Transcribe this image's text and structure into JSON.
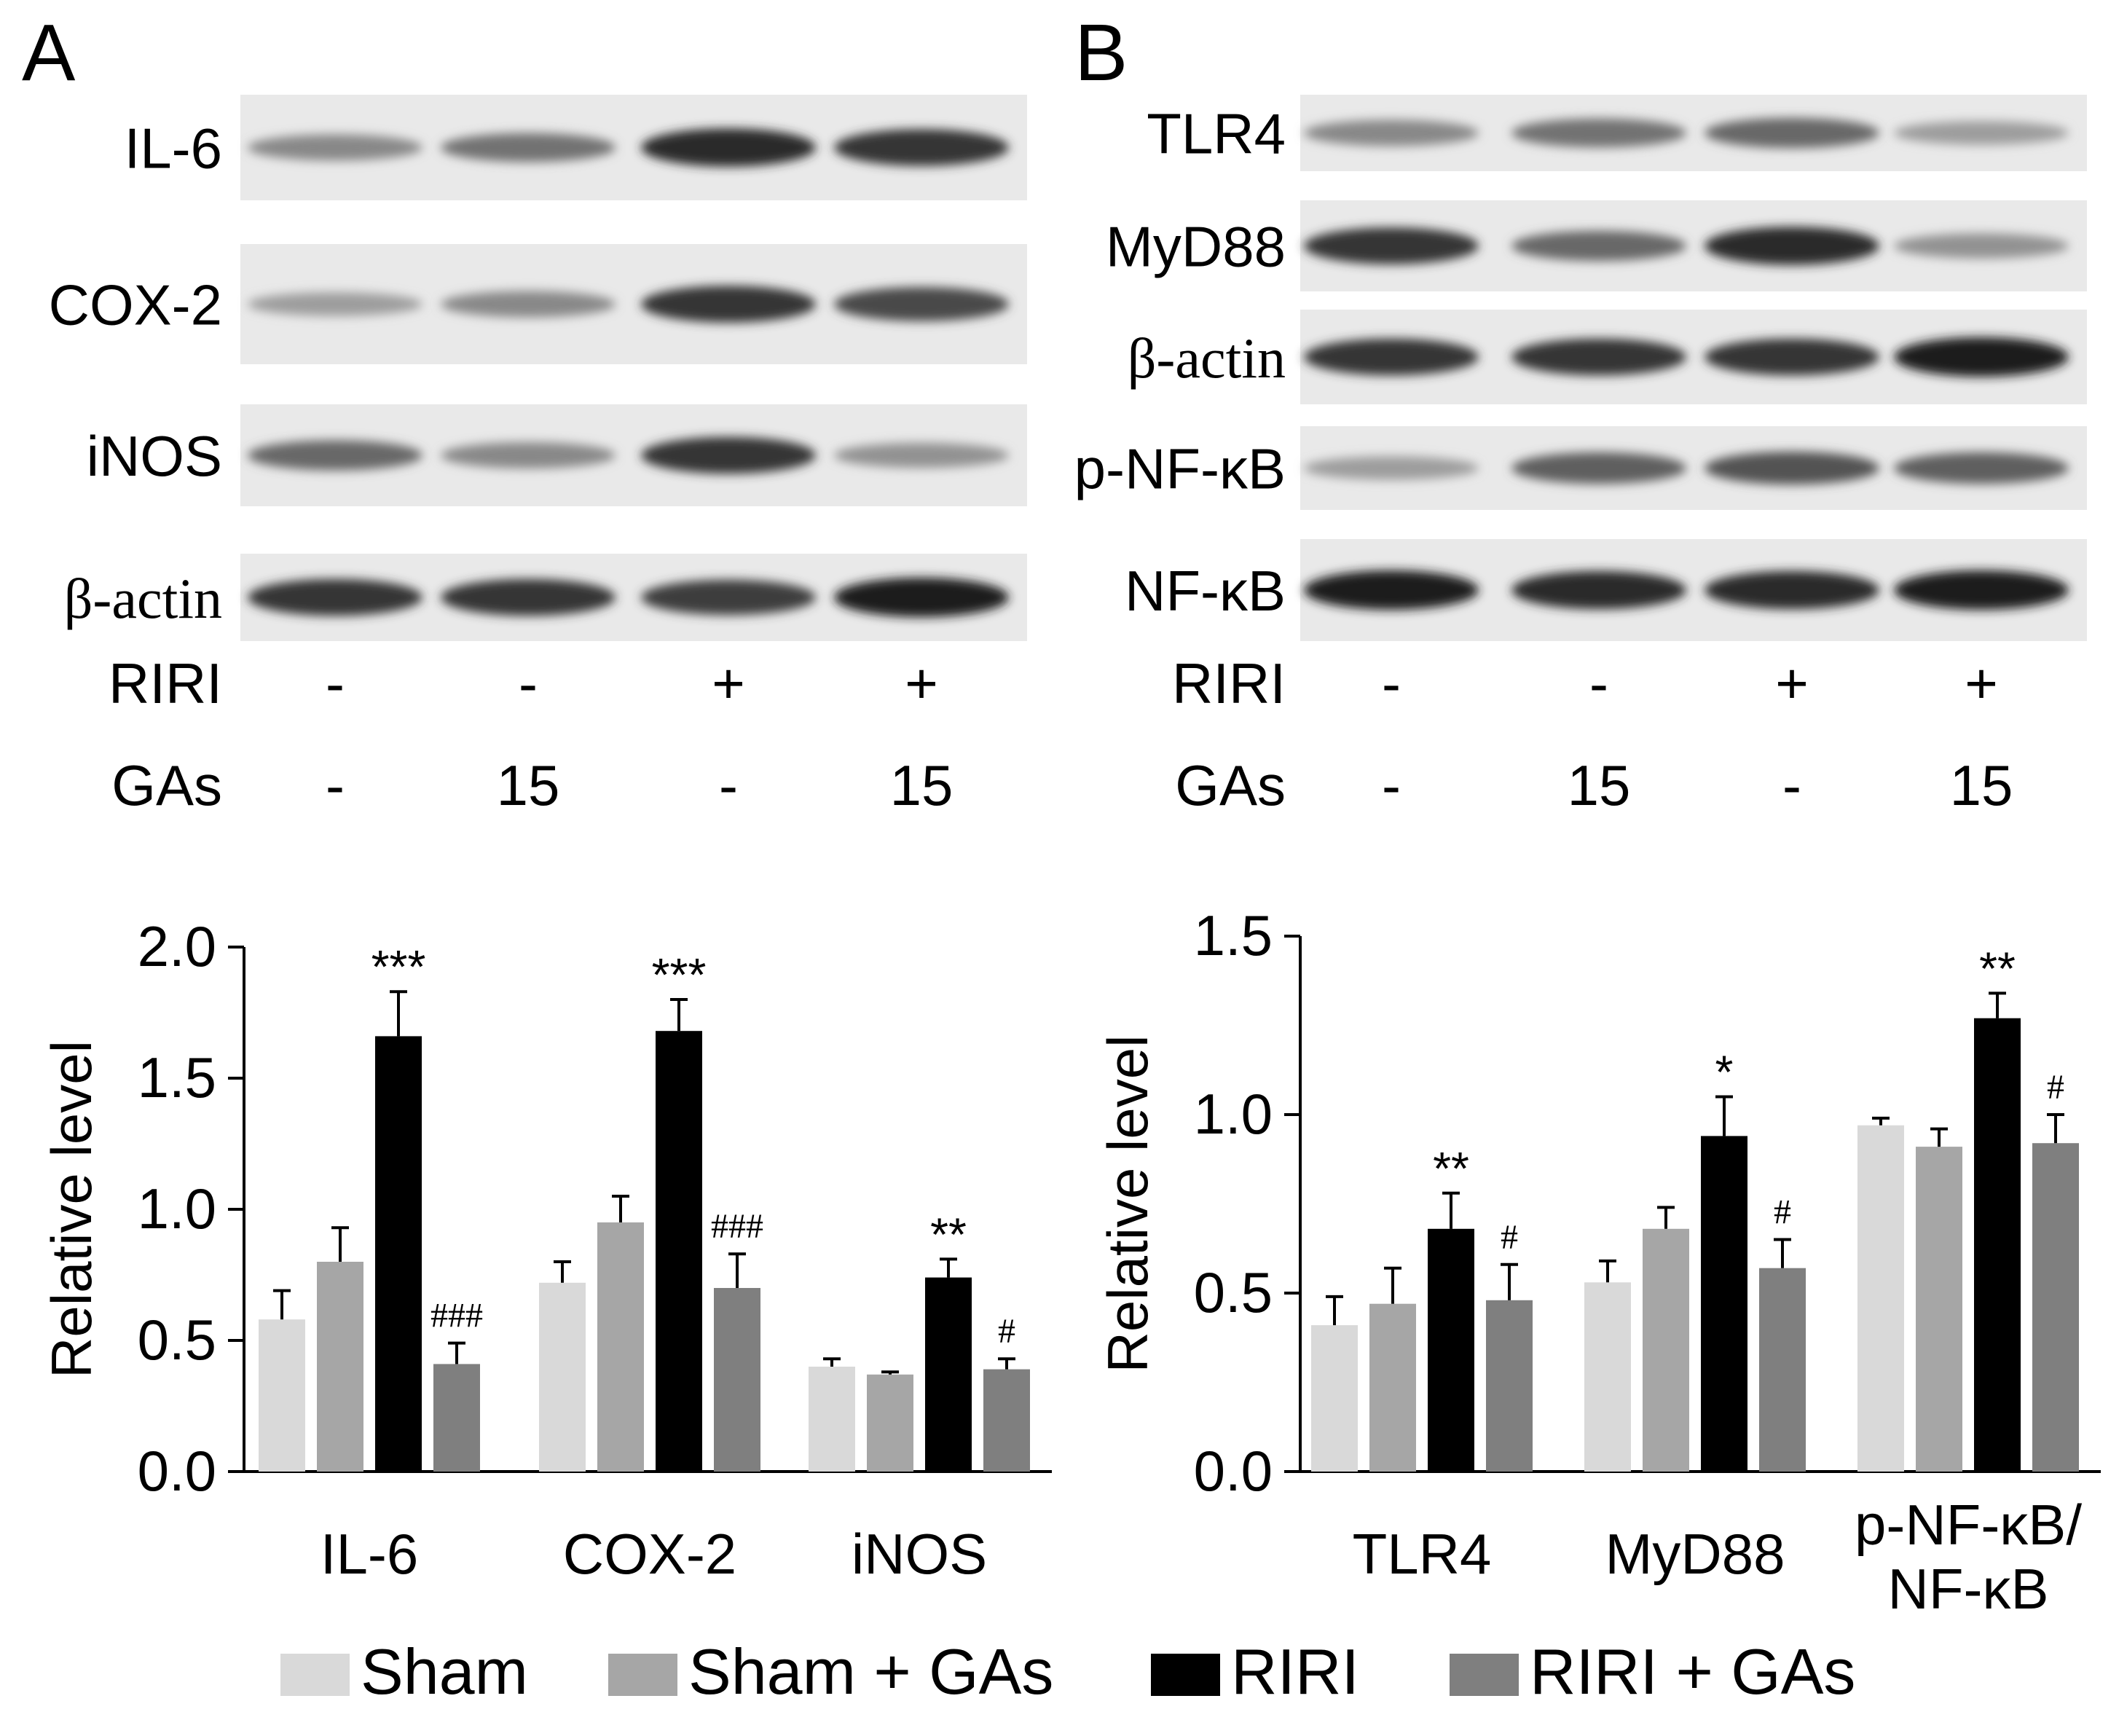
{
  "panels": [
    {
      "letter": "A",
      "blots": [
        {
          "label": "IL-6",
          "intensities": [
            0.45,
            0.55,
            0.9,
            0.85
          ]
        },
        {
          "label": "COX-2",
          "intensities": [
            0.35,
            0.45,
            0.85,
            0.75
          ]
        },
        {
          "label": "iNOS",
          "intensities": [
            0.6,
            0.45,
            0.85,
            0.4
          ]
        },
        {
          "label": "β-actin",
          "intensities": [
            0.85,
            0.85,
            0.8,
            0.95
          ]
        }
      ],
      "conditions": [
        {
          "label": "RIRI",
          "values": [
            "-",
            "-",
            "+",
            "+"
          ]
        },
        {
          "label": "GAs",
          "values": [
            "-",
            "15",
            "-",
            "15"
          ]
        }
      ]
    },
    {
      "letter": "B",
      "blots": [
        {
          "label": "TLR4",
          "intensities": [
            0.45,
            0.55,
            0.6,
            0.35
          ]
        },
        {
          "label": "MyD88",
          "intensities": [
            0.85,
            0.6,
            0.9,
            0.4
          ]
        },
        {
          "label": "β-actin",
          "intensities": [
            0.85,
            0.85,
            0.85,
            0.95
          ]
        },
        {
          "label": "p-NF-κB",
          "intensities": [
            0.35,
            0.65,
            0.7,
            0.65
          ]
        },
        {
          "label": "NF-κB",
          "intensities": [
            0.95,
            0.9,
            0.9,
            0.95
          ]
        }
      ],
      "conditions": [
        {
          "label": "RIRI",
          "values": [
            "-",
            "-",
            "+",
            "+"
          ]
        },
        {
          "label": "GAs",
          "values": [
            "-",
            "15",
            "-",
            "15"
          ]
        }
      ]
    }
  ],
  "chart_data": [
    {
      "type": "bar",
      "ylabel": "Relative level",
      "ylim": [
        0,
        2.0
      ],
      "yticks": [
        "0.0",
        "0.5",
        "1.0",
        "1.5",
        "2.0"
      ],
      "categories": [
        "IL-6",
        "COX-2",
        "iNOS"
      ],
      "series": [
        {
          "name": "Sham",
          "values": [
            0.58,
            0.72,
            0.4
          ],
          "errors": [
            0.11,
            0.08,
            0.03
          ]
        },
        {
          "name": "Sham + GAs",
          "values": [
            0.8,
            0.95,
            0.37
          ],
          "errors": [
            0.13,
            0.1,
            0.01
          ]
        },
        {
          "name": "RIRI",
          "values": [
            1.66,
            1.68,
            0.74
          ],
          "errors": [
            0.17,
            0.12,
            0.07
          ]
        },
        {
          "name": "RIRI + GAs",
          "values": [
            0.41,
            0.7,
            0.39
          ],
          "errors": [
            0.08,
            0.13,
            0.04
          ]
        }
      ],
      "annotations": [
        {
          "category": 0,
          "series": 2,
          "text": "***"
        },
        {
          "category": 0,
          "series": 3,
          "text": "###"
        },
        {
          "category": 1,
          "series": 2,
          "text": "***"
        },
        {
          "category": 1,
          "series": 3,
          "text": "###"
        },
        {
          "category": 2,
          "series": 2,
          "text": "**"
        },
        {
          "category": 2,
          "series": 3,
          "text": "#"
        }
      ]
    },
    {
      "type": "bar",
      "ylabel": "Relative level",
      "ylim": [
        0,
        1.5
      ],
      "yticks": [
        "0.0",
        "0.5",
        "1.0",
        "1.5"
      ],
      "categories": [
        "TLR4",
        "MyD88",
        "p-NF-κB/\nNF-κB"
      ],
      "series": [
        {
          "name": "Sham",
          "values": [
            0.41,
            0.53,
            0.97
          ],
          "errors": [
            0.08,
            0.06,
            0.02
          ]
        },
        {
          "name": "Sham + GAs",
          "values": [
            0.47,
            0.68,
            0.91
          ],
          "errors": [
            0.1,
            0.06,
            0.05
          ]
        },
        {
          "name": "RIRI",
          "values": [
            0.68,
            0.94,
            1.27
          ],
          "errors": [
            0.1,
            0.11,
            0.07
          ]
        },
        {
          "name": "RIRI + GAs",
          "values": [
            0.48,
            0.57,
            0.92
          ],
          "errors": [
            0.1,
            0.08,
            0.08
          ]
        }
      ],
      "annotations": [
        {
          "category": 0,
          "series": 2,
          "text": "**"
        },
        {
          "category": 0,
          "series": 3,
          "text": "#"
        },
        {
          "category": 1,
          "series": 2,
          "text": "*"
        },
        {
          "category": 1,
          "series": 3,
          "text": "#"
        },
        {
          "category": 2,
          "series": 2,
          "text": "**"
        },
        {
          "category": 2,
          "series": 3,
          "text": "#"
        }
      ]
    }
  ],
  "legend": {
    "position": "bottom",
    "items": [
      {
        "label": "Sham",
        "color": "#d9d9d9"
      },
      {
        "label": "Sham + GAs",
        "color": "#a6a6a6"
      },
      {
        "label": "RIRI",
        "color": "#000000"
      },
      {
        "label": "RIRI + GAs",
        "color": "#7f7f7f"
      }
    ]
  }
}
